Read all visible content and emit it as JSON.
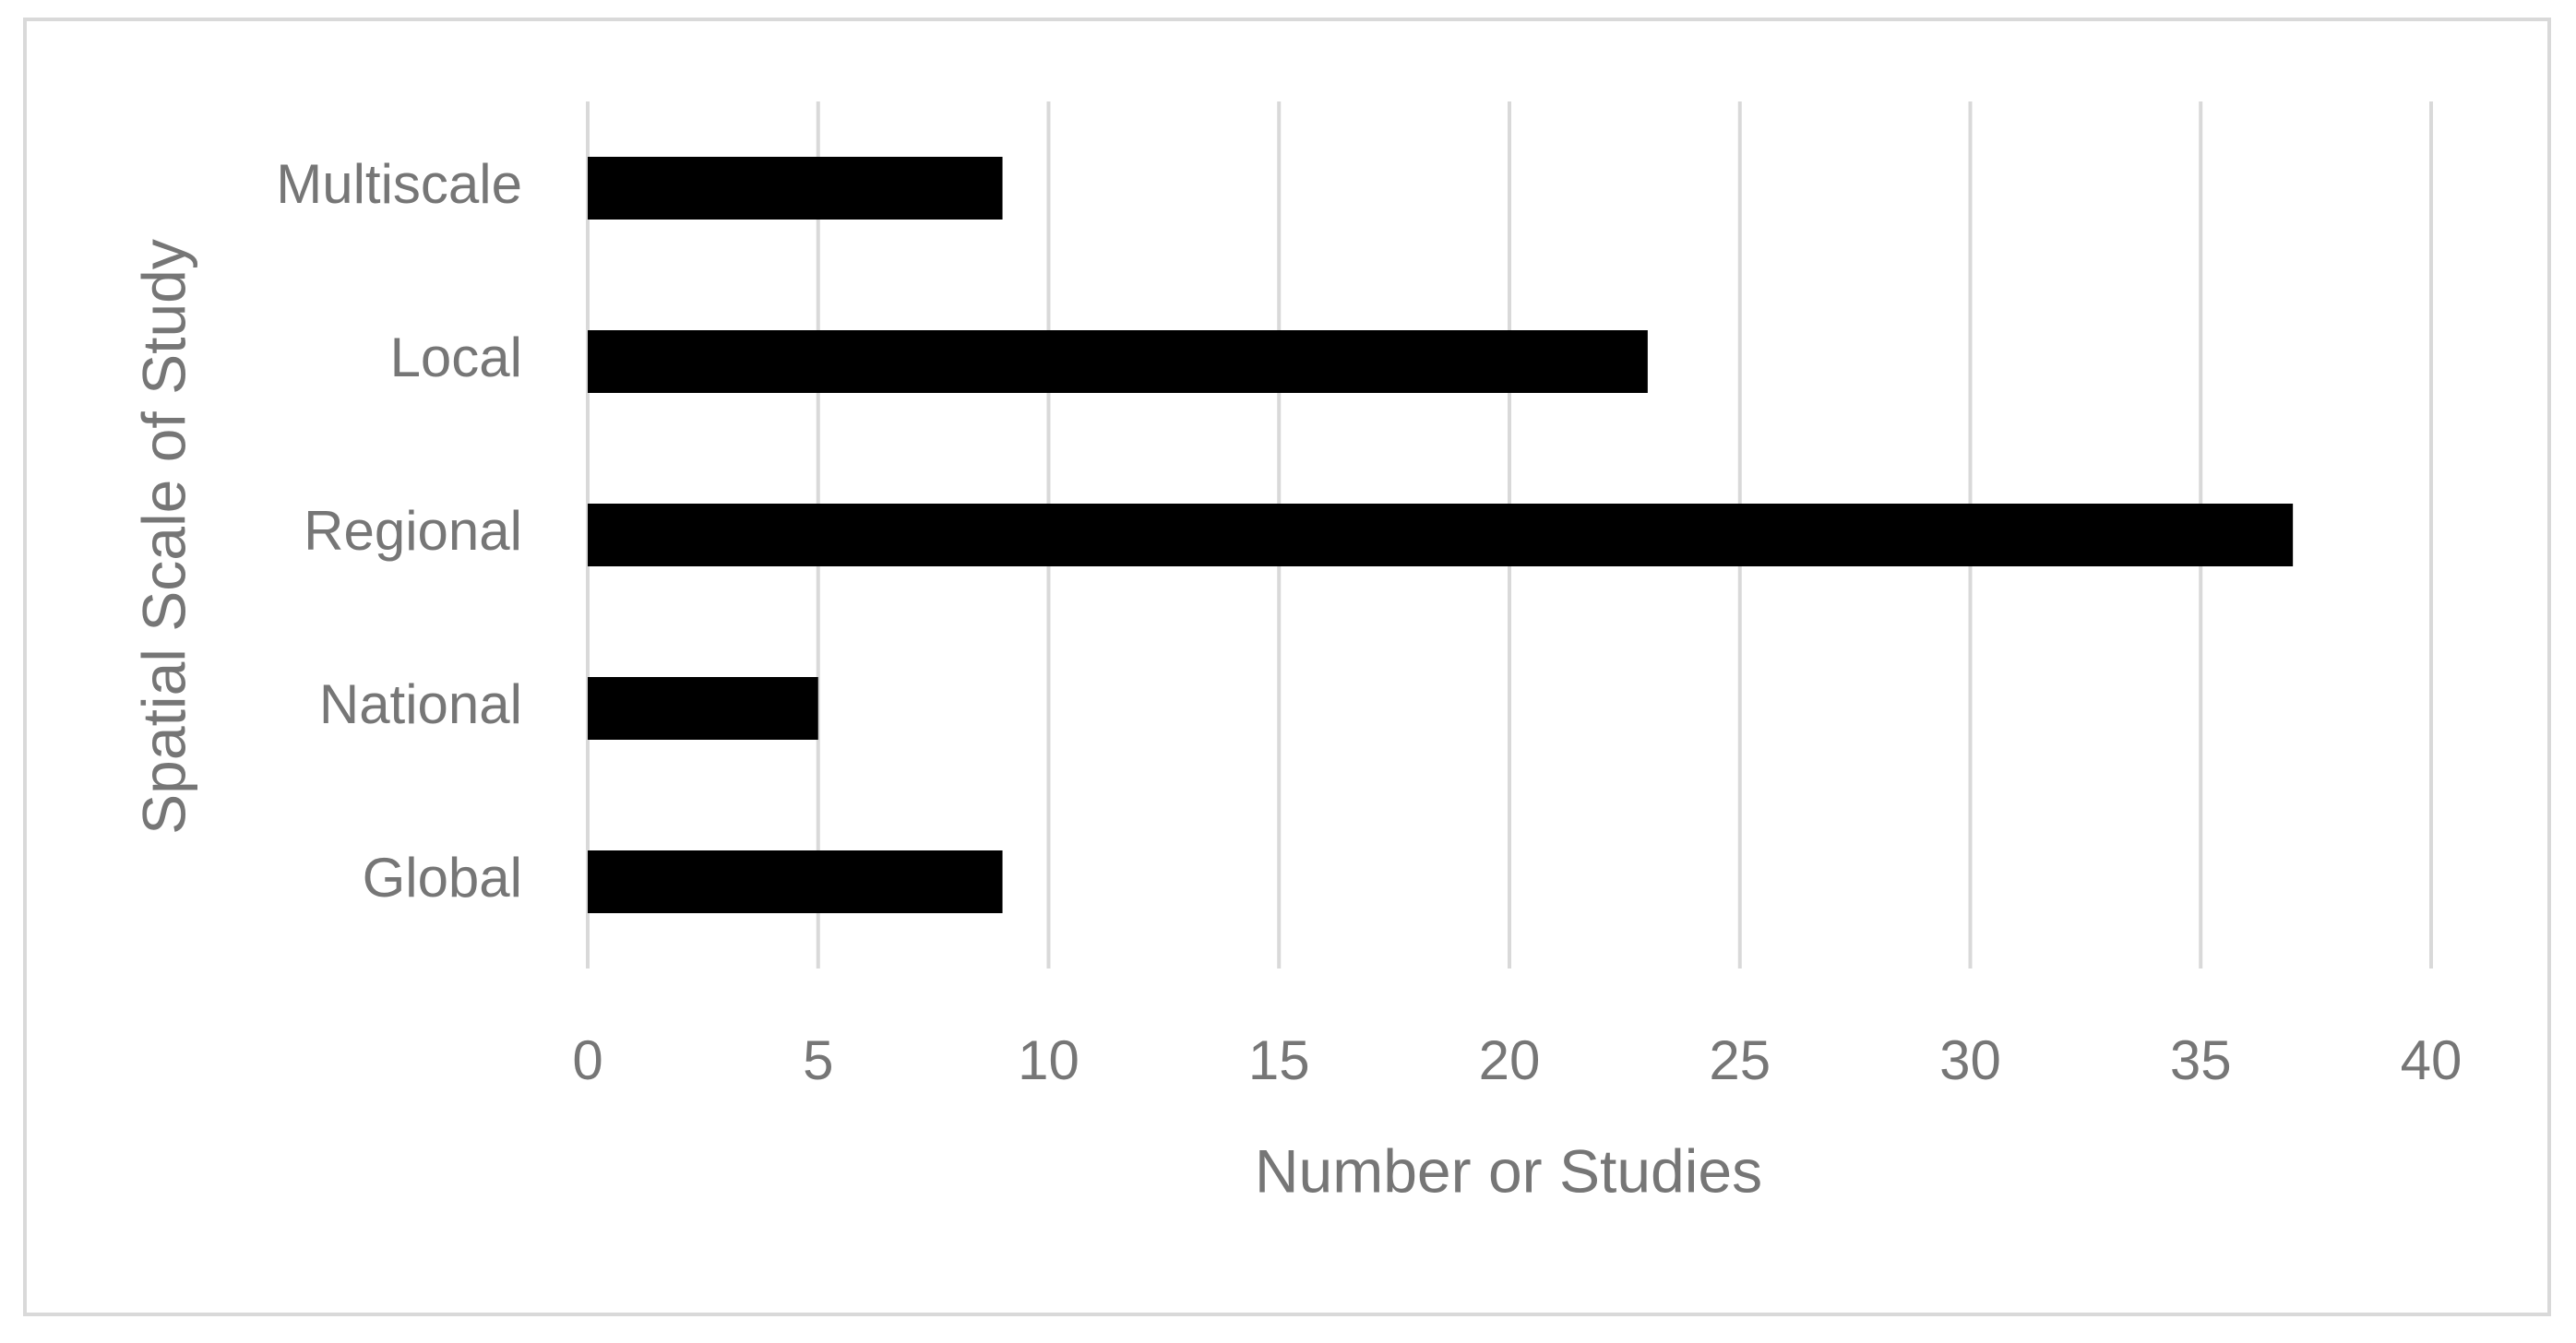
{
  "chart_data": {
    "type": "barh",
    "categories": [
      "Multiscale",
      "Local",
      "Regional",
      "National",
      "Global"
    ],
    "values": [
      9,
      23,
      37,
      5,
      9
    ],
    "color": "#000000",
    "xlabel": "Number or Studies",
    "ylabel": "Spatial Scale of Study",
    "xlim": [
      0,
      40
    ],
    "xticks": [
      0,
      5,
      10,
      15,
      20,
      25,
      30,
      35,
      40
    ],
    "grid": true
  }
}
